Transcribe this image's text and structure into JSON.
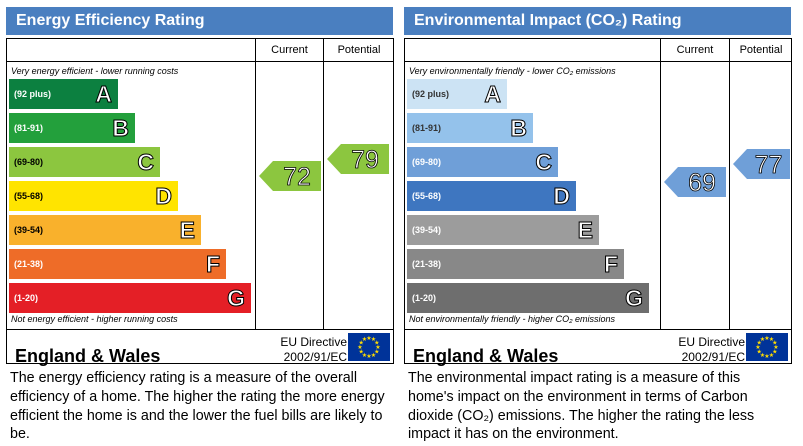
{
  "energy": {
    "title": "Energy Efficiency Rating",
    "col_current": "Current",
    "col_potential": "Potential",
    "top_note": "Very energy efficient - lower running costs",
    "bottom_note": "Not energy efficient - higher running costs",
    "bands": [
      {
        "range": "(92 plus)",
        "letter": "A",
        "color": "#0c8040"
      },
      {
        "range": "(81-91)",
        "letter": "B",
        "color": "#23a03c"
      },
      {
        "range": "(69-80)",
        "letter": "C",
        "color": "#8cc63f"
      },
      {
        "range": "(55-68)",
        "letter": "D",
        "color": "#ffe400"
      },
      {
        "range": "(39-54)",
        "letter": "E",
        "color": "#f9b12c"
      },
      {
        "range": "(21-38)",
        "letter": "F",
        "color": "#ee6c28"
      },
      {
        "range": "(1-20)",
        "letter": "G",
        "color": "#e41f26"
      }
    ],
    "current": {
      "value": "72",
      "band": "C",
      "color": "#8cc63f"
    },
    "potential": {
      "value": "79",
      "band": "C",
      "color": "#8cc63f"
    },
    "footer_region": "England & Wales",
    "directive_line1": "EU Directive",
    "directive_line2": "2002/91/EC",
    "description": "The energy efficiency rating is a measure of the overall efficiency of a home. The higher the rating the more energy efficient the home is and the lower the fuel bills are likely to be."
  },
  "environment": {
    "title": "Environmental Impact (CO₂) Rating",
    "col_current": "Current",
    "col_potential": "Potential",
    "top_note": "Very environmentally friendly - lower CO₂ emissions",
    "bottom_note": "Not environmentally friendly - higher CO₂ emissions",
    "bands": [
      {
        "range": "(92 plus)",
        "letter": "A",
        "color": "#cce3f4"
      },
      {
        "range": "(81-91)",
        "letter": "B",
        "color": "#94c2eb"
      },
      {
        "range": "(69-80)",
        "letter": "C",
        "color": "#6f9fd8"
      },
      {
        "range": "(55-68)",
        "letter": "D",
        "color": "#3e76c0"
      },
      {
        "range": "(39-54)",
        "letter": "E",
        "color": "#9c9c9c"
      },
      {
        "range": "(21-38)",
        "letter": "F",
        "color": "#888888"
      },
      {
        "range": "(1-20)",
        "letter": "G",
        "color": "#6e6e6e"
      }
    ],
    "current": {
      "value": "69",
      "band": "C",
      "color": "#6f9fd8"
    },
    "potential": {
      "value": "77",
      "band": "C",
      "color": "#6f9fd8"
    },
    "footer_region": "England & Wales",
    "directive_line1": "EU Directive",
    "directive_line2": "2002/91/EC",
    "description": "The environmental impact rating is a measure of this home's impact on the environment in terms of Carbon dioxide (CO₂) emissions. The higher the rating the less impact it has on the environment."
  }
}
